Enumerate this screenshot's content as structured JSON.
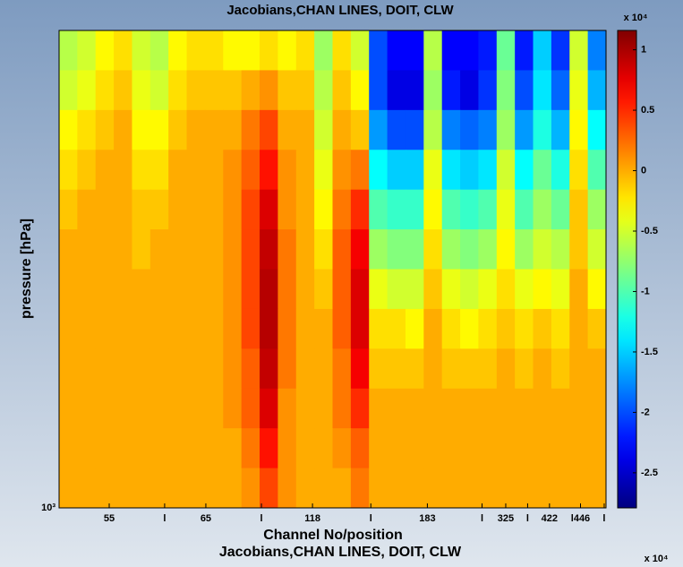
{
  "chart_data": {
    "type": "heatmap",
    "title": "Jacobians,CHAN LINES, DOIT, CLW",
    "xlabel": "Channel No/position",
    "ylabel": "pressure [hPa]",
    "colormap": "jet",
    "clim": [
      -2.79,
      1.16
    ],
    "colorbar_ticks": [
      1,
      0.5,
      0,
      -0.5,
      -1,
      -1.5,
      -2,
      -2.5
    ],
    "colorbar_multiplier": "x 10⁴",
    "xlim": [
      0,
      30
    ],
    "xticks": [
      {
        "value": 2.75,
        "label": "55"
      },
      {
        "value": 5.79,
        "label": "l"
      },
      {
        "value": 8.05,
        "label": "65"
      },
      {
        "value": 11.1,
        "label": "l"
      },
      {
        "value": 13.9,
        "label": "118"
      },
      {
        "value": 17.1,
        "label": "l"
      },
      {
        "value": 20.2,
        "label": "183"
      },
      {
        "value": 23.2,
        "label": "l"
      },
      {
        "value": 24.5,
        "label": "325"
      },
      {
        "value": 25.7,
        "label": "l"
      },
      {
        "value": 26.9,
        "label": "422"
      },
      {
        "value": 28.6,
        "label": "l446"
      },
      {
        "value": 29.9,
        "label": "l"
      }
    ],
    "ylim": [
      0,
      12
    ],
    "y_direction": "reverse",
    "yticks": [
      {
        "value": 12,
        "label": "10³"
      }
    ],
    "values": [
      [
        -0.6,
        -0.5,
        -0.3,
        -0.2,
        -0.5,
        -0.6,
        -0.3,
        -0.2,
        -0.2,
        -0.3,
        -0.3,
        -0.2,
        -0.3,
        -0.2,
        -0.7,
        -0.2,
        -0.5,
        -2.0,
        -2.3,
        -2.3,
        -0.6,
        -2.3,
        -2.3,
        -2.2,
        -0.9,
        -2.2,
        -1.5,
        -2.1,
        -0.5,
        -1.8
      ],
      [
        -0.5,
        -0.4,
        -0.2,
        -0.1,
        -0.4,
        -0.5,
        -0.2,
        -0.1,
        -0.1,
        -0.1,
        0.0,
        0.1,
        -0.1,
        -0.1,
        -0.6,
        -0.1,
        -0.3,
        -2.0,
        -2.4,
        -2.4,
        -0.7,
        -2.2,
        -2.4,
        -2.1,
        -0.8,
        -2.0,
        -1.4,
        -1.9,
        -0.4,
        -1.6
      ],
      [
        -0.3,
        -0.2,
        -0.1,
        0,
        -0.3,
        -0.3,
        -0.1,
        0,
        0,
        0,
        0.2,
        0.4,
        0,
        0,
        -0.5,
        0,
        -0.1,
        -1.7,
        -2.0,
        -2.0,
        -0.6,
        -1.8,
        -1.9,
        -1.8,
        -0.7,
        -1.7,
        -1.2,
        -1.6,
        -0.3,
        -1.3
      ],
      [
        -0.2,
        -0.1,
        0,
        0,
        -0.2,
        -0.2,
        0,
        0,
        0,
        0.1,
        0.3,
        0.6,
        0.1,
        0,
        -0.4,
        0.1,
        0.2,
        -1.3,
        -1.5,
        -1.5,
        -0.4,
        -1.4,
        -1.5,
        -1.4,
        -0.5,
        -1.3,
        -0.9,
        -1.2,
        -0.2,
        -1.0
      ],
      [
        -0.1,
        0,
        0,
        0,
        -0.1,
        -0.1,
        0,
        0,
        0,
        0.1,
        0.4,
        0.8,
        0.1,
        0,
        -0.3,
        0.2,
        0.5,
        -1.0,
        -1.1,
        -1.1,
        -0.3,
        -1.0,
        -1.1,
        -1.0,
        -0.4,
        -1.0,
        -0.7,
        -0.9,
        -0.1,
        -0.7
      ],
      [
        0,
        0,
        0,
        0,
        -0.1,
        0,
        0,
        0,
        0,
        0.1,
        0.4,
        0.9,
        0.2,
        0,
        -0.2,
        0.3,
        0.7,
        -0.7,
        -0.8,
        -0.8,
        -0.2,
        -0.7,
        -0.8,
        -0.7,
        -0.3,
        -0.7,
        -0.5,
        -0.6,
        -0.1,
        -0.5
      ],
      [
        0,
        0,
        0,
        0,
        0,
        0,
        0,
        0,
        0,
        0.1,
        0.4,
        0.95,
        0.2,
        0,
        -0.1,
        0.3,
        0.8,
        -0.4,
        -0.5,
        -0.5,
        -0.1,
        -0.4,
        -0.5,
        -0.4,
        -0.2,
        -0.4,
        -0.3,
        -0.4,
        0,
        -0.3
      ],
      [
        0,
        0,
        0,
        0,
        0,
        0,
        0,
        0,
        0,
        0.1,
        0.4,
        0.95,
        0.2,
        0,
        0,
        0.3,
        0.8,
        -0.2,
        -0.2,
        -0.3,
        0,
        -0.2,
        -0.3,
        -0.2,
        -0.1,
        -0.2,
        -0.1,
        -0.2,
        0,
        -0.1
      ],
      [
        0,
        0,
        0,
        0,
        0,
        0,
        0,
        0,
        0,
        0.1,
        0.3,
        0.9,
        0.2,
        0,
        0,
        0.2,
        0.7,
        -0.1,
        -0.1,
        -0.1,
        0,
        -0.1,
        -0.1,
        -0.1,
        0,
        -0.1,
        0,
        -0.1,
        0,
        0
      ],
      [
        0,
        0,
        0,
        0,
        0,
        0,
        0,
        0,
        0,
        0.1,
        0.3,
        0.8,
        0.1,
        0,
        0,
        0.2,
        0.5,
        0,
        0,
        0,
        0,
        0,
        0,
        0,
        0,
        0,
        0,
        0,
        0,
        0
      ],
      [
        0,
        0,
        0,
        0,
        0,
        0,
        0,
        0,
        0,
        0,
        0.2,
        0.6,
        0.1,
        0,
        0,
        0.1,
        0.3,
        0,
        0,
        0,
        0,
        0,
        0,
        0,
        0,
        0,
        0,
        0,
        0,
        0
      ],
      [
        0,
        0,
        0,
        0,
        0,
        0,
        0,
        0,
        0,
        0,
        0.1,
        0.4,
        0.1,
        0,
        0,
        0,
        0.2,
        0,
        0,
        0,
        0,
        0,
        0,
        0,
        0,
        0,
        0,
        0,
        0,
        0
      ]
    ]
  }
}
